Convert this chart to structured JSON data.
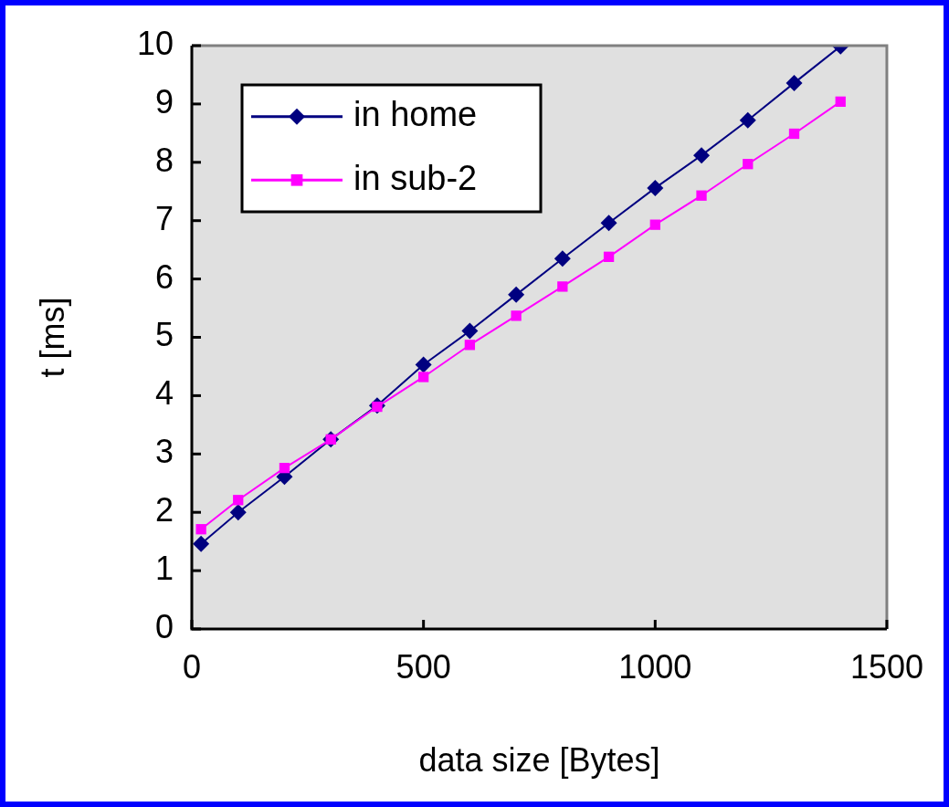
{
  "chart_data": {
    "type": "line",
    "xlabel": "data size [Bytes]",
    "ylabel": "t [ms]",
    "x": [
      20,
      100,
      200,
      300,
      400,
      500,
      600,
      700,
      800,
      900,
      1000,
      1100,
      1200,
      1300,
      1400
    ],
    "series": [
      {
        "name": "in home",
        "color": "#000080",
        "marker": "diamond",
        "values": [
          1.46,
          2.0,
          2.61,
          3.25,
          3.83,
          4.53,
          5.11,
          5.73,
          6.35,
          6.96,
          7.56,
          8.12,
          8.72,
          9.36,
          9.99
        ]
      },
      {
        "name": "in sub-2",
        "color": "#ff00ff",
        "marker": "square",
        "values": [
          1.71,
          2.21,
          2.76,
          3.25,
          3.81,
          4.32,
          4.87,
          5.37,
          5.87,
          6.38,
          6.93,
          7.43,
          7.97,
          8.49,
          9.04
        ]
      }
    ],
    "xlim": [
      0,
      1500
    ],
    "xticks": [
      0,
      500,
      1000,
      1500
    ],
    "ylim": [
      0,
      10
    ],
    "yticks": [
      0,
      1,
      2,
      3,
      4,
      5,
      6,
      7,
      8,
      9,
      10
    ],
    "grid": false,
    "legend": "top left",
    "line_style": "solid"
  }
}
